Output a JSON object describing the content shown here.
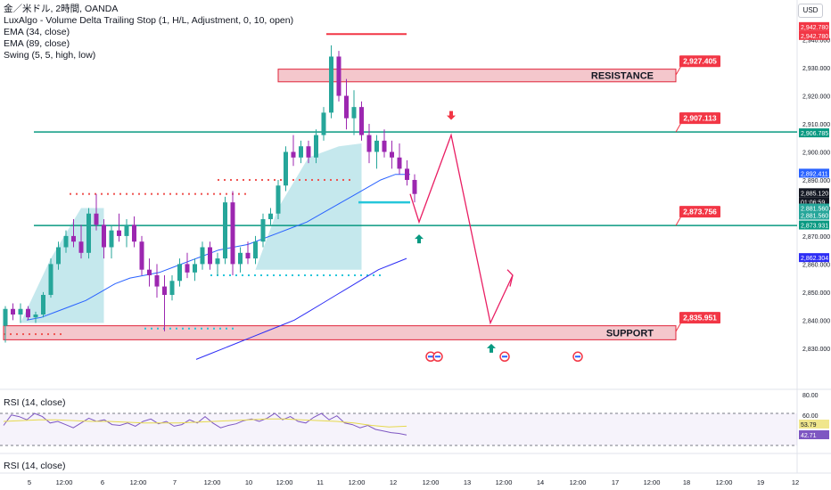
{
  "legend": {
    "symbol": "金／米ドル, 2時間, OANDA",
    "indicator1": "LuxAlgo - Volume Delta Trailing Stop (1, H/L, Adjustment, 0, 10, open)",
    "indicator2": "EMA (34, close)",
    "indicator3": "EMA (89, close)",
    "indicator4": "Swing (5, 5, high, low)"
  },
  "currency_button": "USD",
  "rsi_panel_label": "RSI (14, close)",
  "rsi_panel2_label": "RSI (14, close)",
  "colors": {
    "level_line": "#089981",
    "zone_fill": "#f4c7cc",
    "zone_border": "#e0243a",
    "projection": "#e91e63",
    "label_red": "#f23645",
    "ema34": "#2962ff",
    "ema89": "#2d2df5",
    "candle_up": "#26a69a",
    "candle_down": "#9c27b0",
    "trail_fill": "#a6dbe3",
    "rsi_line": "#7e57c2",
    "rsi_ma": "#e6d94d"
  },
  "chart_data": {
    "type": "candlestick",
    "price_axis": {
      "range": [
        2822,
        2944
      ],
      "ticks": [
        "2,940.000",
        "2,930.000",
        "2,920.000",
        "2,910.000",
        "2,900.000",
        "2,890.000",
        "2,880.000",
        "2,870.000",
        "2,860.000",
        "2,850.000",
        "2,840.000",
        "2,830.000"
      ]
    },
    "time_axis": {
      "ticks": [
        "5",
        "12:00",
        "6",
        "12:00",
        "7",
        "12:00",
        "10",
        "12:00",
        "11",
        "12:00",
        "12",
        "12:00",
        "13",
        "12:00",
        "14",
        "12:00",
        "17",
        "12:00",
        "18",
        "12:00",
        "19",
        "12"
      ]
    },
    "candles": [
      [
        2838,
        2845,
        2832,
        2844
      ],
      [
        2844,
        2846,
        2840,
        2842
      ],
      [
        2842,
        2846,
        2839,
        2844
      ],
      [
        2844,
        2845,
        2840,
        2841
      ],
      [
        2841,
        2843,
        2839,
        2842
      ],
      [
        2842,
        2850,
        2841,
        2849
      ],
      [
        2849,
        2862,
        2848,
        2860
      ],
      [
        2860,
        2868,
        2858,
        2866
      ],
      [
        2866,
        2872,
        2864,
        2870
      ],
      [
        2870,
        2876,
        2866,
        2868
      ],
      [
        2868,
        2874,
        2862,
        2864
      ],
      [
        2864,
        2880,
        2862,
        2878
      ],
      [
        2878,
        2885,
        2872,
        2874
      ],
      [
        2874,
        2876,
        2862,
        2866
      ],
      [
        2866,
        2874,
        2862,
        2872
      ],
      [
        2872,
        2878,
        2868,
        2870
      ],
      [
        2870,
        2876,
        2866,
        2874
      ],
      [
        2874,
        2877,
        2866,
        2868
      ],
      [
        2868,
        2870,
        2856,
        2858
      ],
      [
        2858,
        2862,
        2852,
        2856
      ],
      [
        2856,
        2860,
        2848,
        2852
      ],
      [
        2852,
        2856,
        2836,
        2849
      ],
      [
        2849,
        2856,
        2847,
        2854
      ],
      [
        2854,
        2862,
        2852,
        2860
      ],
      [
        2860,
        2864,
        2855,
        2857
      ],
      [
        2857,
        2862,
        2854,
        2860
      ],
      [
        2860,
        2868,
        2858,
        2866
      ],
      [
        2866,
        2868,
        2858,
        2860
      ],
      [
        2860,
        2864,
        2856,
        2862
      ],
      [
        2862,
        2884,
        2860,
        2882
      ],
      [
        2882,
        2886,
        2856,
        2860
      ],
      [
        2860,
        2866,
        2857,
        2864
      ],
      [
        2864,
        2868,
        2860,
        2862
      ],
      [
        2862,
        2870,
        2860,
        2868
      ],
      [
        2868,
        2878,
        2866,
        2876
      ],
      [
        2876,
        2880,
        2874,
        2878
      ],
      [
        2878,
        2890,
        2876,
        2888
      ],
      [
        2888,
        2902,
        2886,
        2900
      ],
      [
        2900,
        2906,
        2895,
        2898
      ],
      [
        2898,
        2904,
        2896,
        2902
      ],
      [
        2902,
        2904,
        2896,
        2898
      ],
      [
        2898,
        2908,
        2896,
        2906
      ],
      [
        2906,
        2916,
        2904,
        2914
      ],
      [
        2914,
        2938,
        2912,
        2934
      ],
      [
        2934,
        2936,
        2918,
        2920
      ],
      [
        2920,
        2926,
        2908,
        2912
      ],
      [
        2912,
        2922,
        2906,
        2916
      ],
      [
        2916,
        2918,
        2904,
        2906
      ],
      [
        2906,
        2910,
        2896,
        2900
      ],
      [
        2900,
        2906,
        2894,
        2904
      ],
      [
        2904,
        2908,
        2898,
        2900
      ],
      [
        2900,
        2904,
        2894,
        2898
      ],
      [
        2898,
        2903,
        2892,
        2894
      ],
      [
        2894,
        2897,
        2888,
        2890
      ],
      [
        2890,
        2892,
        2882,
        2885
      ]
    ],
    "ema34": [
      2840,
      2841,
      2843,
      2845,
      2847,
      2850,
      2853,
      2855,
      2856,
      2857,
      2859,
      2861,
      2863,
      2865,
      2866,
      2867,
      2869,
      2871,
      2873,
      2875,
      2878,
      2881,
      2884,
      2887,
      2890,
      2892,
      2892
    ],
    "ema89": [
      2826,
      2828,
      2830,
      2832,
      2834,
      2836,
      2838,
      2840,
      2843,
      2846,
      2849,
      2852,
      2855,
      2858,
      2860,
      2862
    ],
    "levels": [
      {
        "label": "2,927.405",
        "price": 2927.405
      },
      {
        "label": "2,907.113",
        "price": 2907.113
      },
      {
        "label": "2,873.756",
        "price": 2873.756
      },
      {
        "label": "2,835.951",
        "price": 2835.951
      }
    ],
    "zones": [
      {
        "label": "RESISTANCE",
        "top": 2929.5,
        "bottom": 2925
      },
      {
        "label": "SUPPORT",
        "top": 2838,
        "bottom": 2833
      }
    ],
    "projection_path": [
      2885,
      2875,
      2906,
      2839,
      2856
    ],
    "right_axis_labels": [
      {
        "text": "2,942.780",
        "color": "#f23645"
      },
      {
        "text": "2,942.780",
        "color": "#f23645"
      },
      {
        "text": "2,906.785",
        "color": "#089981"
      },
      {
        "text": "2,892.411",
        "color": "#2962ff"
      },
      {
        "text": "2,885.120",
        "color": "#131722"
      },
      {
        "text": "01:06:59",
        "color": "#131722"
      },
      {
        "text": "2,881.560",
        "color": "#26a69a"
      },
      {
        "text": "2,881.560",
        "color": "#26a69a"
      },
      {
        "text": "2,873.931",
        "color": "#089981"
      },
      {
        "text": "2,862.304",
        "color": "#2d2df5"
      }
    ],
    "rsi": {
      "ticks": [
        "80.00",
        "60.00"
      ],
      "labels": [
        {
          "text": "53.79",
          "color": "#f0e68c"
        },
        {
          "text": "42.71",
          "color": "#7e57c2"
        }
      ],
      "values": [
        55,
        68,
        66,
        62,
        70,
        66,
        58,
        60,
        56,
        52,
        58,
        64,
        60,
        62,
        56,
        55,
        58,
        54,
        60,
        63,
        57,
        60,
        54,
        56,
        62,
        58,
        66,
        58,
        52,
        55,
        57,
        61,
        63,
        60,
        64,
        70,
        62,
        66,
        60,
        58,
        65,
        70,
        62,
        67,
        58,
        56,
        52,
        55,
        50,
        48,
        46,
        45,
        43
      ],
      "ma_values": [
        60,
        61,
        62,
        62,
        61,
        60,
        60,
        59,
        58,
        58,
        58,
        59,
        60,
        61,
        62,
        63,
        63,
        62,
        61,
        60,
        58,
        55,
        53,
        54
      ]
    }
  }
}
